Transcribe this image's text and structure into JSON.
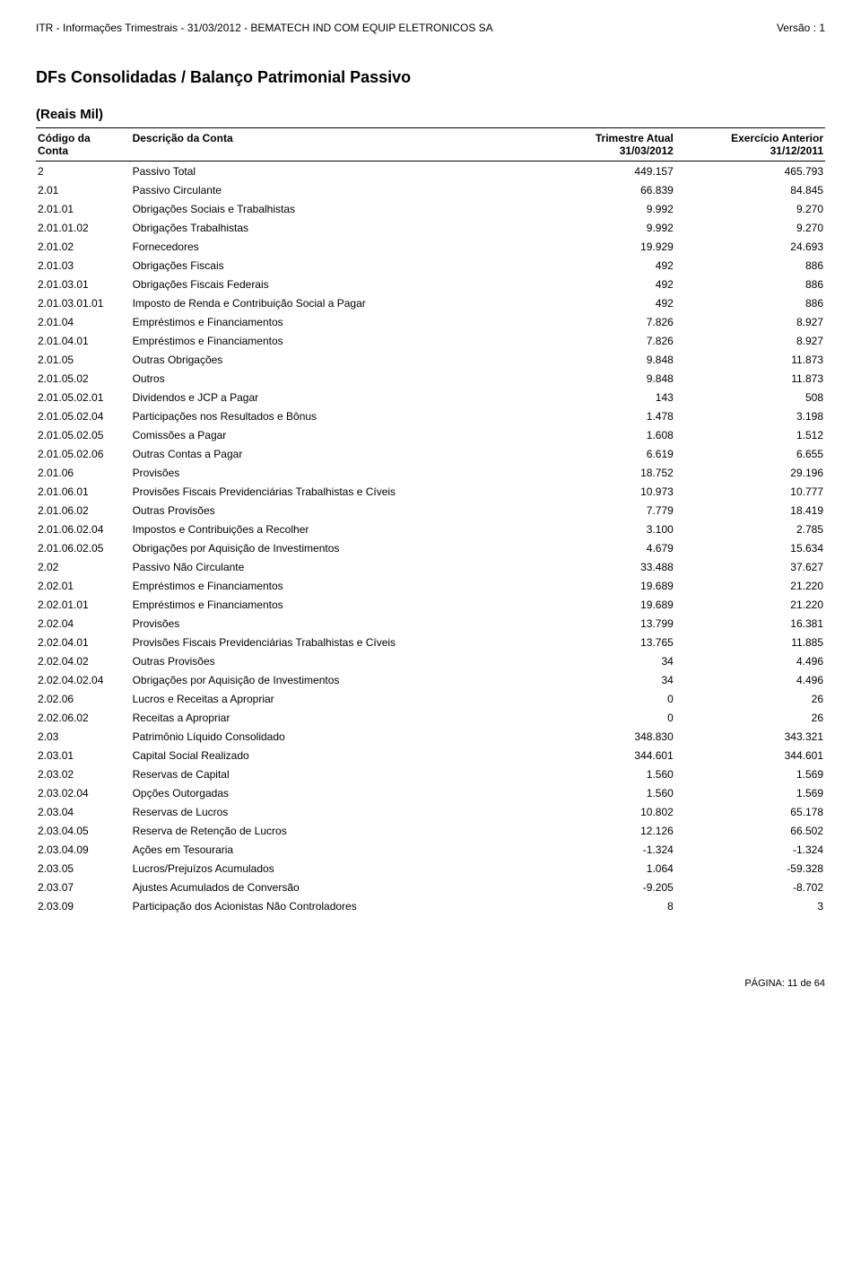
{
  "header": {
    "left": "ITR - Informações Trimestrais - 31/03/2012 - BEMATECH IND COM EQUIP ELETRONICOS SA",
    "right": "Versão : 1"
  },
  "title": "DFs Consolidadas / Balanço Patrimonial Passivo",
  "subtitle": "(Reais Mil)",
  "columns": {
    "code": [
      "Código da",
      "Conta"
    ],
    "desc": [
      "Descrição da Conta",
      ""
    ],
    "atual": [
      "Trimestre Atual",
      "31/03/2012"
    ],
    "anterior": [
      "Exercício Anterior",
      "31/12/2011"
    ]
  },
  "rows": [
    {
      "c": "2",
      "d": "Passivo Total",
      "a": "449.157",
      "b": "465.793"
    },
    {
      "c": "2.01",
      "d": "Passivo Circulante",
      "a": "66.839",
      "b": "84.845"
    },
    {
      "c": "2.01.01",
      "d": "Obrigações Sociais e Trabalhistas",
      "a": "9.992",
      "b": "9.270"
    },
    {
      "c": "2.01.01.02",
      "d": "Obrigações Trabalhistas",
      "a": "9.992",
      "b": "9.270"
    },
    {
      "c": "2.01.02",
      "d": "Fornecedores",
      "a": "19.929",
      "b": "24.693"
    },
    {
      "c": "2.01.03",
      "d": "Obrigações Fiscais",
      "a": "492",
      "b": "886"
    },
    {
      "c": "2.01.03.01",
      "d": "Obrigações Fiscais Federais",
      "a": "492",
      "b": "886"
    },
    {
      "c": "2.01.03.01.01",
      "d": "Imposto de Renda e Contribuição Social a Pagar",
      "a": "492",
      "b": "886"
    },
    {
      "c": "2.01.04",
      "d": "Empréstimos e Financiamentos",
      "a": "7.826",
      "b": "8.927"
    },
    {
      "c": "2.01.04.01",
      "d": "Empréstimos e Financiamentos",
      "a": "7.826",
      "b": "8.927"
    },
    {
      "c": "2.01.05",
      "d": "Outras Obrigações",
      "a": "9.848",
      "b": "11.873"
    },
    {
      "c": "2.01.05.02",
      "d": "Outros",
      "a": "9.848",
      "b": "11.873"
    },
    {
      "c": "2.01.05.02.01",
      "d": "Dividendos e JCP a Pagar",
      "a": "143",
      "b": "508"
    },
    {
      "c": "2.01.05.02.04",
      "d": "Participações nos Resultados e Bônus",
      "a": "1.478",
      "b": "3.198"
    },
    {
      "c": "2.01.05.02.05",
      "d": "Comissões a Pagar",
      "a": "1.608",
      "b": "1.512"
    },
    {
      "c": "2.01.05.02.06",
      "d": "Outras Contas a Pagar",
      "a": "6.619",
      "b": "6.655"
    },
    {
      "c": "2.01.06",
      "d": "Provisões",
      "a": "18.752",
      "b": "29.196"
    },
    {
      "c": "2.01.06.01",
      "d": "Provisões Fiscais Previdenciárias Trabalhistas e Cíveis",
      "a": "10.973",
      "b": "10.777"
    },
    {
      "c": "2.01.06.02",
      "d": "Outras Provisões",
      "a": "7.779",
      "b": "18.419"
    },
    {
      "c": "2.01.06.02.04",
      "d": "Impostos e Contribuições a Recolher",
      "a": "3.100",
      "b": "2.785"
    },
    {
      "c": "2.01.06.02.05",
      "d": "Obrigações por Aquisição de Investimentos",
      "a": "4.679",
      "b": "15.634"
    },
    {
      "c": "2.02",
      "d": "Passivo Não Circulante",
      "a": "33.488",
      "b": "37.627"
    },
    {
      "c": "2.02.01",
      "d": "Empréstimos e Financiamentos",
      "a": "19.689",
      "b": "21.220"
    },
    {
      "c": "2.02.01.01",
      "d": "Empréstimos e Financiamentos",
      "a": "19.689",
      "b": "21.220"
    },
    {
      "c": "2.02.04",
      "d": "Provisões",
      "a": "13.799",
      "b": "16.381"
    },
    {
      "c": "2.02.04.01",
      "d": "Provisões Fiscais Previdenciárias Trabalhistas e Cíveis",
      "a": "13.765",
      "b": "11.885"
    },
    {
      "c": "2.02.04.02",
      "d": "Outras Provisões",
      "a": "34",
      "b": "4.496"
    },
    {
      "c": "2.02.04.02.04",
      "d": "Obrigações por Aquisição de Investimentos",
      "a": "34",
      "b": "4.496"
    },
    {
      "c": "2.02.06",
      "d": "Lucros e Receitas a Apropriar",
      "a": "0",
      "b": "26"
    },
    {
      "c": "2.02.06.02",
      "d": "Receitas a Apropriar",
      "a": "0",
      "b": "26"
    },
    {
      "c": "2.03",
      "d": "Patrimônio Líquido Consolidado",
      "a": "348.830",
      "b": "343.321"
    },
    {
      "c": "2.03.01",
      "d": "Capital Social Realizado",
      "a": "344.601",
      "b": "344.601"
    },
    {
      "c": "2.03.02",
      "d": "Reservas de Capital",
      "a": "1.560",
      "b": "1.569"
    },
    {
      "c": "2.03.02.04",
      "d": "Opções Outorgadas",
      "a": "1.560",
      "b": "1.569"
    },
    {
      "c": "2.03.04",
      "d": "Reservas de Lucros",
      "a": "10.802",
      "b": "65.178"
    },
    {
      "c": "2.03.04.05",
      "d": "Reserva de Retenção de Lucros",
      "a": "12.126",
      "b": "66.502"
    },
    {
      "c": "2.03.04.09",
      "d": "Ações em Tesouraria",
      "a": "-1.324",
      "b": "-1.324"
    },
    {
      "c": "2.03.05",
      "d": "Lucros/Prejuízos Acumulados",
      "a": "1.064",
      "b": "-59.328"
    },
    {
      "c": "2.03.07",
      "d": "Ajustes Acumulados de Conversão",
      "a": "-9.205",
      "b": "-8.702"
    },
    {
      "c": "2.03.09",
      "d": "Participação dos Acionistas Não Controladores",
      "a": "8",
      "b": "3"
    }
  ],
  "footer": "PÁGINA: 11 de 64"
}
